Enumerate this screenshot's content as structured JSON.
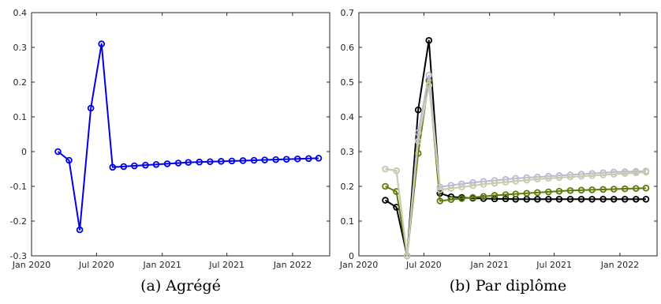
{
  "chart_data": [
    {
      "type": "line",
      "caption": "(a) Agrégé",
      "ylim": [
        -0.3,
        0.4
      ],
      "yticks": [
        -0.3,
        -0.2,
        -0.1,
        0,
        0.1,
        0.2,
        0.3,
        0.4
      ],
      "ytick_labels": [
        "-0.3",
        "-0.2",
        "-0.1",
        "0",
        "0.1",
        "0.2",
        "0.3",
        "0.4"
      ],
      "xlim": [
        "2020-01-01",
        "2022-04-15"
      ],
      "xticks": [
        "2020-01-01",
        "2020-07-01",
        "2021-01-01",
        "2021-07-01",
        "2022-01-01"
      ],
      "xtick_labels": [
        "Jan 2020",
        "Jul 2020",
        "Jan 2021",
        "Jul 2021",
        "Jan 2022"
      ],
      "grid": false,
      "x": [
        "2020-03",
        "2020-04",
        "2020-05",
        "2020-06",
        "2020-07",
        "2020-08",
        "2020-09",
        "2020-10",
        "2020-11",
        "2020-12",
        "2021-01",
        "2021-02",
        "2021-03",
        "2021-04",
        "2021-05",
        "2021-06",
        "2021-07",
        "2021-08",
        "2021-09",
        "2021-10",
        "2021-11",
        "2021-12",
        "2022-01",
        "2022-02",
        "2022-03"
      ],
      "series": [
        {
          "color": "#0000ee",
          "values": [
            0.0,
            -0.025,
            -0.225,
            0.125,
            0.31,
            -0.045,
            -0.043,
            -0.041,
            -0.039,
            -0.037,
            -0.035,
            -0.033,
            -0.031,
            -0.03,
            -0.029,
            -0.028,
            -0.027,
            -0.026,
            -0.025,
            -0.024,
            -0.023,
            -0.022,
            -0.021,
            -0.02,
            -0.019
          ]
        }
      ]
    },
    {
      "type": "line",
      "caption": "(b) Par diplôme",
      "ylim": [
        0,
        0.7
      ],
      "yticks": [
        0,
        0.1,
        0.2,
        0.3,
        0.4,
        0.5,
        0.6,
        0.7
      ],
      "ytick_labels": [
        "0",
        "0.1",
        "0.2",
        "0.3",
        "0.4",
        "0.5",
        "0.6",
        "0.7"
      ],
      "xlim": [
        "2020-01-01",
        "2022-04-15"
      ],
      "xticks": [
        "2020-01-01",
        "2020-07-01",
        "2021-01-01",
        "2021-07-01",
        "2022-01-01"
      ],
      "xtick_labels": [
        "Jan 2020",
        "Jul 2020",
        "Jan 2021",
        "Jul 2021",
        "Jan 2022"
      ],
      "grid": false,
      "x": [
        "2020-03",
        "2020-04",
        "2020-05",
        "2020-06",
        "2020-07",
        "2020-08",
        "2020-09",
        "2020-10",
        "2020-11",
        "2020-12",
        "2021-01",
        "2021-02",
        "2021-03",
        "2021-04",
        "2021-05",
        "2021-06",
        "2021-07",
        "2021-08",
        "2021-09",
        "2021-10",
        "2021-11",
        "2021-12",
        "2022-01",
        "2022-02",
        "2022-03"
      ],
      "series": [
        {
          "color": "#000000",
          "values": [
            0.16,
            0.14,
            0.0,
            0.42,
            0.62,
            0.18,
            0.17,
            0.168,
            0.166,
            0.165,
            0.164,
            0.164,
            0.163,
            0.163,
            0.163,
            0.163,
            0.163,
            0.163,
            0.163,
            0.163,
            0.163,
            0.163,
            0.163,
            0.163,
            0.163
          ]
        },
        {
          "color": "#5e7a0a",
          "values": [
            0.2,
            0.185,
            0.0,
            0.295,
            0.505,
            0.158,
            0.162,
            0.165,
            0.168,
            0.171,
            0.174,
            0.176,
            0.178,
            0.18,
            0.182,
            0.184,
            0.186,
            0.188,
            0.189,
            0.19,
            0.191,
            0.192,
            0.193,
            0.194,
            0.195
          ]
        },
        {
          "color": "#b8b8d8",
          "values": [
            0.25,
            0.245,
            0.0,
            0.355,
            0.52,
            0.198,
            0.203,
            0.207,
            0.211,
            0.214,
            0.217,
            0.22,
            0.223,
            0.225,
            0.227,
            0.229,
            0.231,
            0.233,
            0.235,
            0.237,
            0.239,
            0.241,
            0.242,
            0.243,
            0.244
          ]
        },
        {
          "color": "#c8ccae",
          "values": [
            0.25,
            0.245,
            0.0,
            0.33,
            0.49,
            0.19,
            0.194,
            0.198,
            0.202,
            0.206,
            0.209,
            0.212,
            0.215,
            0.218,
            0.221,
            0.223,
            0.225,
            0.227,
            0.229,
            0.231,
            0.233,
            0.235,
            0.237,
            0.239,
            0.241
          ]
        }
      ]
    }
  ]
}
